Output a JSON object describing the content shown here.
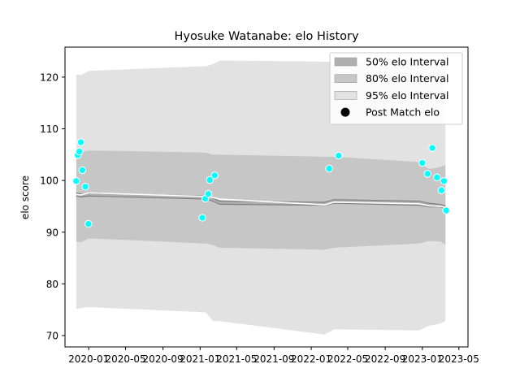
{
  "chart_data": {
    "type": "line",
    "title": "Hyosuke Watanabe: elo History",
    "xlabel": "",
    "ylabel": "elo score",
    "xlim": [
      "2019-10-15",
      "2023-05-31"
    ],
    "ylim": [
      67.8,
      125.8
    ],
    "x_ticks": [
      "2020-01",
      "2020-05",
      "2020-09",
      "2021-01",
      "2021-05",
      "2021-09",
      "2022-01",
      "2022-05",
      "2022-09",
      "2023-01",
      "2023-05"
    ],
    "y_ticks": [
      70,
      80,
      90,
      100,
      110,
      120
    ],
    "legend": {
      "position": "top-right",
      "entries": [
        "50% elo Interval",
        "80% elo Interval",
        "95% elo Interval",
        "Post Match elo"
      ]
    },
    "series": [
      {
        "name": "50% elo Interval",
        "kind": "band",
        "color": "#b0b0b0",
        "x": [
          "2019-11-21",
          "2019-12-06",
          "2020-01-01",
          "2021-01-20",
          "2021-02-12",
          "2021-03-06",
          "2022-02-14",
          "2022-03-17",
          "2022-12-21",
          "2023-01-23",
          "2023-02-28",
          "2023-03-18"
        ],
        "lower": [
          97.0,
          96.8,
          97.0,
          96.4,
          96.0,
          95.4,
          95.2,
          95.6,
          95.2,
          94.9,
          94.9,
          94.5
        ],
        "upper": [
          97.6,
          97.4,
          97.5,
          97.0,
          96.6,
          96.0,
          95.8,
          96.3,
          96.0,
          95.6,
          95.4,
          95.1
        ]
      },
      {
        "name": "80% elo Interval",
        "kind": "band",
        "color": "#c6c6c6",
        "x": [
          "2019-11-21",
          "2019-12-06",
          "2020-01-01",
          "2021-01-20",
          "2021-02-12",
          "2021-03-06",
          "2022-02-14",
          "2022-03-17",
          "2022-12-21",
          "2023-01-23",
          "2023-02-28",
          "2023-03-18"
        ],
        "lower": [
          88.2,
          88.0,
          88.8,
          87.8,
          87.5,
          87.0,
          86.6,
          87.0,
          87.8,
          88.3,
          88.2,
          87.6
        ],
        "upper": [
          105.4,
          105.4,
          105.8,
          105.4,
          105.0,
          105.0,
          104.6,
          104.6,
          103.6,
          102.2,
          102.6,
          103.0
        ]
      },
      {
        "name": "95% elo Interval",
        "kind": "band",
        "color": "#e2e2e2",
        "x": [
          "2019-11-21",
          "2019-12-06",
          "2020-01-01",
          "2021-01-20",
          "2021-02-12",
          "2021-03-06",
          "2022-02-14",
          "2022-03-17",
          "2022-12-21",
          "2023-01-23",
          "2023-02-28",
          "2023-03-18"
        ],
        "lower": [
          75.2,
          75.3,
          75.5,
          74.5,
          72.8,
          72.8,
          70.2,
          71.2,
          71.0,
          71.9,
          72.3,
          72.8
        ],
        "upper": [
          120.5,
          120.4,
          121.2,
          122.1,
          122.5,
          123.2,
          123.0,
          123.0,
          122.5,
          121.9,
          122.1,
          122.2
        ]
      },
      {
        "name": "expected elo",
        "kind": "line",
        "color": "#ffffff",
        "x": [
          "2019-11-21",
          "2019-12-06",
          "2020-01-01",
          "2021-01-20",
          "2021-02-12",
          "2021-03-06",
          "2022-02-14",
          "2022-03-17",
          "2022-12-21",
          "2023-01-23",
          "2023-02-28",
          "2023-03-18"
        ],
        "values": [
          97.3,
          97.2,
          97.6,
          96.9,
          96.7,
          96.4,
          95.3,
          95.8,
          95.5,
          95.1,
          95.0,
          94.8
        ]
      },
      {
        "name": "Post Match elo",
        "kind": "scatter",
        "color": "#00ffff",
        "x": [
          "2019-11-21",
          "2019-11-26",
          "2019-12-01",
          "2019-12-06",
          "2019-12-11",
          "2019-12-21",
          "2019-12-31",
          "2021-01-08",
          "2021-01-18",
          "2021-01-28",
          "2021-02-02",
          "2021-02-18",
          "2022-03-01",
          "2022-04-01",
          "2023-01-01",
          "2023-01-18",
          "2023-02-03",
          "2023-02-18",
          "2023-03-05",
          "2023-03-13",
          "2023-03-20"
        ],
        "values": [
          99.9,
          104.9,
          105.6,
          107.4,
          102.0,
          98.8,
          91.6,
          92.8,
          96.5,
          97.4,
          100.1,
          101.0,
          102.3,
          104.8,
          103.4,
          101.3,
          106.3,
          100.6,
          98.1,
          99.9,
          94.2
        ]
      }
    ]
  }
}
